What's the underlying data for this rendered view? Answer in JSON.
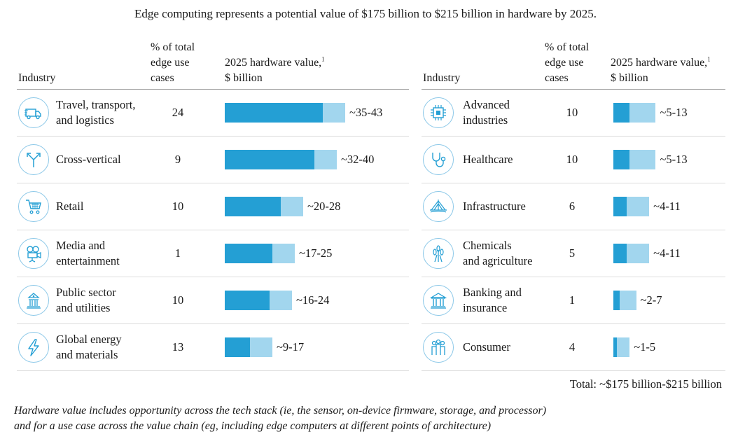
{
  "title": "Edge computing represents a potential value of $175 billion to $215 billion in hardware by 2025.",
  "headers": {
    "industry": "Industry",
    "pct_line1": "% of total",
    "pct_line2": "edge use",
    "pct_line3": "cases",
    "value_line1": "2025 hardware value,",
    "value_sup": "1",
    "value_line2": "$ billion"
  },
  "total": "Total: ~$175 billion-$215 billion",
  "note_line1": "Hardware value includes opportunity across the tech stack (ie, the sensor, on-device firmware, storage, and processor)",
  "note_line2": "and for a use case across the value chain (eg, including edge computers at different points of architecture)",
  "colors": {
    "low": "#249fd4",
    "high": "#a2d6ee",
    "icon_ring": "#8cc8e8"
  },
  "chart_data": {
    "type": "bar",
    "orientation": "horizontal",
    "panels": [
      {
        "rows": [
          {
            "line1": "Travel, transport,",
            "line2": "and logistics",
            "icon": "truck-icon",
            "pct": "24",
            "low": 35,
            "high": 43,
            "label": "~35-43"
          },
          {
            "line1": "Cross-vertical",
            "line2": "",
            "icon": "branch-arrows-icon",
            "pct": "9",
            "low": 32,
            "high": 40,
            "label": "~32-40"
          },
          {
            "line1": "Retail",
            "line2": "",
            "icon": "shopping-cart-icon",
            "pct": "10",
            "low": 20,
            "high": 28,
            "label": "~20-28"
          },
          {
            "line1": "Media and",
            "line2": "entertainment",
            "icon": "film-camera-icon",
            "pct": "1",
            "low": 17,
            "high": 25,
            "label": "~17-25"
          },
          {
            "line1": "Public sector",
            "line2": "and utilities",
            "icon": "government-building-icon",
            "pct": "10",
            "low": 16,
            "high": 24,
            "label": "~16-24"
          },
          {
            "line1": "Global energy",
            "line2": "and materials",
            "icon": "lightning-icon",
            "pct": "13",
            "low": 9,
            "high": 17,
            "label": "~9-17"
          }
        ]
      },
      {
        "rows": [
          {
            "line1": "Advanced",
            "line2": "industries",
            "icon": "microchip-icon",
            "pct": "10",
            "low": 5,
            "high": 13,
            "label": "~5-13"
          },
          {
            "line1": "Healthcare",
            "line2": "",
            "icon": "stethoscope-icon",
            "pct": "10",
            "low": 5,
            "high": 13,
            "label": "~5-13"
          },
          {
            "line1": "Infrastructure",
            "line2": "",
            "icon": "bridge-icon",
            "pct": "6",
            "low": 4,
            "high": 11,
            "label": "~4-11"
          },
          {
            "line1": "Chemicals",
            "line2": "and agriculture",
            "icon": "wheat-icon",
            "pct": "5",
            "low": 4,
            "high": 11,
            "label": "~4-11"
          },
          {
            "line1": "Banking and",
            "line2": "insurance",
            "icon": "bank-icon",
            "pct": "1",
            "low": 2,
            "high": 7,
            "label": "~2-7"
          },
          {
            "line1": "Consumer",
            "line2": "",
            "icon": "people-group-icon",
            "pct": "4",
            "low": 1,
            "high": 5,
            "label": "~1-5"
          }
        ]
      }
    ]
  }
}
